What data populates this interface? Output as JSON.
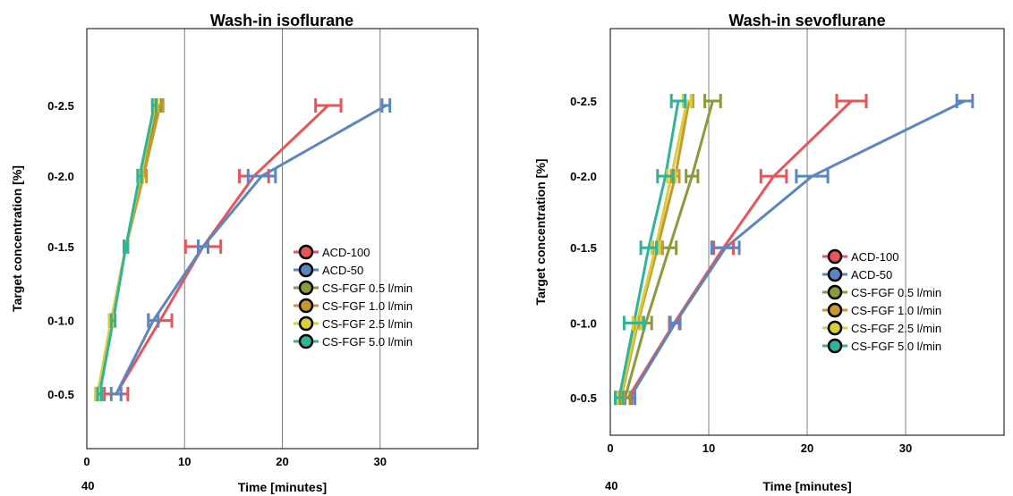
{
  "chart_data": [
    {
      "type": "line",
      "title": "Wash-in isoflurane",
      "xlabel": "Time [minutes]",
      "ylabel": "Target concentration [%]",
      "xlim": [
        0,
        40
      ],
      "xticks": [
        0,
        10,
        20,
        30
      ],
      "xtick_labels": [
        "0",
        "10",
        "20",
        "30"
      ],
      "x_end_label": "40",
      "categories": [
        "0-0.5",
        "0-1.0",
        "0-1.5",
        "0-2.0",
        "0-2.5"
      ],
      "grid": "vertical",
      "legend_position": "center-right",
      "series": [
        {
          "name": "ACD-100",
          "color": "#e8545a",
          "points": [
            {
              "x": 3.0,
              "err": 1.2
            },
            {
              "x": 7.5,
              "err": 1.2
            },
            {
              "x": 11.9,
              "err": 1.8
            },
            {
              "x": 17.1,
              "err": 1.5
            },
            {
              "x": 24.7,
              "err": 1.3
            }
          ]
        },
        {
          "name": "ACD-50",
          "color": "#5b86bf",
          "points": [
            {
              "x": 3.0,
              "err": 0.5
            },
            {
              "x": 6.8,
              "err": 0.5
            },
            {
              "x": 11.9,
              "err": 0.5
            },
            {
              "x": 17.9,
              "err": 1.4
            },
            {
              "x": 30.6,
              "err": 0.4
            }
          ]
        },
        {
          "name": "CS-FGF 0.5 l/min",
          "color": "#8a9a3c",
          "points": [
            {
              "x": 1.3,
              "err": 0.2
            },
            {
              "x": 2.6,
              "err": 0.2
            },
            {
              "x": 4.0,
              "err": 0.2
            },
            {
              "x": 5.5,
              "err": 0.2
            },
            {
              "x": 7.3,
              "err": 0.3
            }
          ]
        },
        {
          "name": "CS-FGF 1.0 l/min",
          "color": "#c9972e",
          "points": [
            {
              "x": 1.1,
              "err": 0.2
            },
            {
              "x": 2.5,
              "err": 0.2
            },
            {
              "x": 4.0,
              "err": 0.2
            },
            {
              "x": 5.8,
              "err": 0.3
            },
            {
              "x": 7.5,
              "err": 0.3
            }
          ]
        },
        {
          "name": "CS-FGF 2.5 l/min",
          "color": "#d9cf3a",
          "points": [
            {
              "x": 1.1,
              "err": 0.2
            },
            {
              "x": 2.5,
              "err": 0.2
            },
            {
              "x": 4.0,
              "err": 0.2
            },
            {
              "x": 5.5,
              "err": 0.2
            },
            {
              "x": 7.0,
              "err": 0.2
            }
          ]
        },
        {
          "name": "CS-FGF 5.0 l/min",
          "color": "#2fb39a",
          "points": [
            {
              "x": 1.3,
              "err": 0.2
            },
            {
              "x": 2.7,
              "err": 0.2
            },
            {
              "x": 4.0,
              "err": 0.2
            },
            {
              "x": 5.4,
              "err": 0.2
            },
            {
              "x": 6.9,
              "err": 0.2
            }
          ]
        }
      ]
    },
    {
      "type": "line",
      "title": "Wash-in sevoflurane",
      "xlabel": "Time [minutes]",
      "ylabel": "Target concentration [%]",
      "xlim": [
        0,
        40
      ],
      "xticks": [
        0,
        10,
        20,
        30
      ],
      "xtick_labels": [
        "0",
        "10",
        "20",
        "30"
      ],
      "x_end_label": "40",
      "categories": [
        "0-0.5",
        "0-1.0",
        "0-1.5",
        "0-2.0",
        "0-2.5"
      ],
      "grid": "vertical",
      "legend_position": "center-right",
      "series": [
        {
          "name": "ACD-100",
          "color": "#e8545a",
          "points": [
            {
              "x": 1.8,
              "err": 0.4
            },
            {
              "x": 6.5,
              "err": 0.5
            },
            {
              "x": 11.5,
              "err": 1.0
            },
            {
              "x": 16.6,
              "err": 1.3
            },
            {
              "x": 24.5,
              "err": 1.5
            }
          ]
        },
        {
          "name": "ACD-50",
          "color": "#5b86bf",
          "points": [
            {
              "x": 2.0,
              "err": 0.5
            },
            {
              "x": 6.6,
              "err": 0.5
            },
            {
              "x": 11.7,
              "err": 1.4
            },
            {
              "x": 20.5,
              "err": 1.6
            },
            {
              "x": 36.0,
              "err": 0.8
            }
          ]
        },
        {
          "name": "CS-FGF 0.5 l/min",
          "color": "#8a9a3c",
          "points": [
            {
              "x": 1.5,
              "err": 0.5
            },
            {
              "x": 3.6,
              "err": 0.6
            },
            {
              "x": 6.0,
              "err": 0.7
            },
            {
              "x": 8.3,
              "err": 0.6
            },
            {
              "x": 10.4,
              "err": 0.8
            }
          ]
        },
        {
          "name": "CS-FGF 1.0 l/min",
          "color": "#c9972e",
          "points": [
            {
              "x": 1.1,
              "err": 0.3
            },
            {
              "x": 2.8,
              "err": 0.4
            },
            {
              "x": 4.8,
              "err": 0.5
            },
            {
              "x": 6.6,
              "err": 0.4
            },
            {
              "x": 8.0,
              "err": 0.4
            }
          ]
        },
        {
          "name": "CS-FGF 2.5 l/min",
          "color": "#d9cf3a",
          "points": [
            {
              "x": 1.0,
              "err": 0.3
            },
            {
              "x": 2.7,
              "err": 0.4
            },
            {
              "x": 4.6,
              "err": 0.4
            },
            {
              "x": 6.2,
              "err": 0.4
            },
            {
              "x": 7.8,
              "err": 0.4
            }
          ]
        },
        {
          "name": "CS-FGF 5.0 l/min",
          "color": "#2fb39a",
          "points": [
            {
              "x": 0.9,
              "err": 0.4
            },
            {
              "x": 2.4,
              "err": 1.0
            },
            {
              "x": 3.9,
              "err": 0.8
            },
            {
              "x": 5.6,
              "err": 0.8
            },
            {
              "x": 6.9,
              "err": 0.7
            }
          ]
        }
      ]
    }
  ]
}
